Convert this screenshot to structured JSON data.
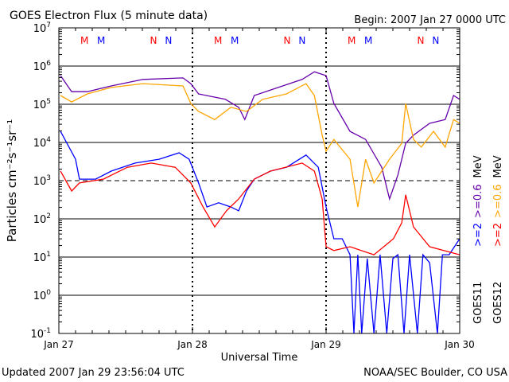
{
  "chart_data": {
    "type": "line",
    "title": "GOES Electron Flux (5 minute data)",
    "begin_label": "Begin: 2007 Jan 27 0000 UTC",
    "xlabel": "Universal Time",
    "ylabel": "Particles cm⁻²s⁻¹sr⁻¹",
    "x_unit": "hours since 2007 Jan 27 0000 UTC",
    "xlim": [
      0,
      72
    ],
    "y_scale": "log10",
    "ylim_log10": [
      -1,
      7
    ],
    "x_ticks": [
      {
        "hours": 0,
        "label": "Jan 27"
      },
      {
        "hours": 24,
        "label": "Jan 28"
      },
      {
        "hours": 48,
        "label": "Jan 29"
      },
      {
        "hours": 72,
        "label": "Jan 30"
      }
    ],
    "y_ticks": [
      {
        "base": "10",
        "exp": "7"
      },
      {
        "base": "10",
        "exp": "6"
      },
      {
        "base": "10",
        "exp": "5"
      },
      {
        "base": "10",
        "exp": "4"
      },
      {
        "base": "10",
        "exp": "3"
      },
      {
        "base": "10",
        "exp": "2"
      },
      {
        "base": "10",
        "exp": "1"
      },
      {
        "base": "10",
        "exp": "0"
      },
      {
        "base": "10",
        "exp": "-1"
      }
    ],
    "threshold_log10": 3,
    "grid": true,
    "legend": {
      "placement": "right",
      "satellites": [
        "GOES11",
        "GOES12"
      ],
      "unit": "MeV",
      "entries": [
        {
          "sat": "GOES11",
          "label": ">=2",
          "color": "#0000ff"
        },
        {
          "sat": "GOES11",
          "label": ">=0.6",
          "color": "#6600aa"
        },
        {
          "sat": "GOES12",
          "label": ">=2",
          "color": "#ff0000"
        },
        {
          "sat": "GOES12",
          "label": ">=0.6",
          "color": "#ffa500"
        }
      ]
    },
    "markers": [
      {
        "label": "M",
        "color": "#ff0000",
        "hour_of_day": 4.6
      },
      {
        "label": "M",
        "color": "#0000ff",
        "hour_of_day": 7.6
      },
      {
        "label": "N",
        "color": "#ff0000",
        "hour_of_day": 17.0
      },
      {
        "label": "N",
        "color": "#0000ff",
        "hour_of_day": 19.7
      }
    ],
    "series": [
      {
        "name": "GOES11 >=0.6 MeV",
        "color": "#6600aa",
        "points": [
          [
            0.3,
            5.75
          ],
          [
            2.3,
            5.33
          ],
          [
            5.1,
            5.33
          ],
          [
            9.4,
            5.48
          ],
          [
            15.1,
            5.65
          ],
          [
            22.3,
            5.69
          ],
          [
            23.7,
            5.54
          ],
          [
            25.1,
            5.27
          ],
          [
            29.9,
            5.13
          ],
          [
            32.3,
            4.92
          ],
          [
            33.4,
            4.6
          ],
          [
            35.1,
            5.23
          ],
          [
            39.4,
            5.44
          ],
          [
            43.7,
            5.65
          ],
          [
            45.9,
            5.85
          ],
          [
            48,
            5.75
          ],
          [
            49.4,
            5.02
          ],
          [
            52.3,
            4.29
          ],
          [
            55.1,
            4.08
          ],
          [
            58,
            3.35
          ],
          [
            59.4,
            2.52
          ],
          [
            60.9,
            3.15
          ],
          [
            62.3,
            3.98
          ],
          [
            63.7,
            4.19
          ],
          [
            66.6,
            4.5
          ],
          [
            69.4,
            4.6
          ],
          [
            70.9,
            5.23
          ],
          [
            72,
            5.13
          ]
        ]
      },
      {
        "name": "GOES12 >=0.6 MeV",
        "color": "#ffa500",
        "points": [
          [
            0.3,
            5.23
          ],
          [
            2.3,
            5.06
          ],
          [
            5.1,
            5.27
          ],
          [
            9.4,
            5.44
          ],
          [
            15.1,
            5.54
          ],
          [
            22.3,
            5.48
          ],
          [
            23.7,
            5.02
          ],
          [
            25.1,
            4.81
          ],
          [
            28,
            4.6
          ],
          [
            30.9,
            4.92
          ],
          [
            33.7,
            4.81
          ],
          [
            36.6,
            5.13
          ],
          [
            40.9,
            5.27
          ],
          [
            44.4,
            5.54
          ],
          [
            45.9,
            5.23
          ],
          [
            47.3,
            4.19
          ],
          [
            48,
            3.77
          ],
          [
            49.4,
            4.08
          ],
          [
            52.3,
            3.56
          ],
          [
            53.7,
            2.31
          ],
          [
            55.1,
            3.56
          ],
          [
            56.6,
            2.94
          ],
          [
            59.4,
            3.56
          ],
          [
            61.6,
            3.98
          ],
          [
            62.3,
            5.02
          ],
          [
            63.7,
            4.08
          ],
          [
            65.1,
            3.88
          ],
          [
            67.3,
            4.29
          ],
          [
            69.4,
            3.88
          ],
          [
            70.9,
            4.6
          ],
          [
            72,
            4.5
          ]
        ]
      },
      {
        "name": "GOES11 >=2 MeV",
        "color": "#0000ff",
        "points": [
          [
            0.3,
            4.29
          ],
          [
            3,
            3.56
          ],
          [
            3.7,
            3.04
          ],
          [
            6.6,
            3.04
          ],
          [
            9.4,
            3.25
          ],
          [
            13.7,
            3.46
          ],
          [
            18,
            3.56
          ],
          [
            21.6,
            3.73
          ],
          [
            23.4,
            3.56
          ],
          [
            25.1,
            2.94
          ],
          [
            26.6,
            2.31
          ],
          [
            28.7,
            2.42
          ],
          [
            30.9,
            2.31
          ],
          [
            32.3,
            2.21
          ],
          [
            33.7,
            2.73
          ],
          [
            35.1,
            3.04
          ],
          [
            38,
            3.25
          ],
          [
            40.9,
            3.35
          ],
          [
            44.4,
            3.67
          ],
          [
            46.6,
            3.35
          ],
          [
            48,
            2.31
          ],
          [
            49.4,
            1.48
          ],
          [
            50.9,
            1.48
          ],
          [
            52.3,
            1.06
          ],
          [
            53,
            -1
          ],
          [
            53.7,
            1.06
          ],
          [
            54.4,
            -1
          ],
          [
            55.4,
            0.96
          ],
          [
            56.6,
            -1
          ],
          [
            57.7,
            1.06
          ],
          [
            58.9,
            -1
          ],
          [
            60,
            0.96
          ],
          [
            60.9,
            1.06
          ],
          [
            62,
            -1
          ],
          [
            63,
            1.06
          ],
          [
            64.4,
            -1
          ],
          [
            65.4,
            1.06
          ],
          [
            66.6,
            0.85
          ],
          [
            68,
            -1
          ],
          [
            68.9,
            1.06
          ],
          [
            70.1,
            1.06
          ],
          [
            72,
            1.48
          ]
        ]
      },
      {
        "name": "GOES12 >=2 MeV",
        "color": "#ff0000",
        "points": [
          [
            0.3,
            3.25
          ],
          [
            2.3,
            2.73
          ],
          [
            3.7,
            2.94
          ],
          [
            8,
            3.04
          ],
          [
            12.3,
            3.35
          ],
          [
            16.6,
            3.46
          ],
          [
            20.9,
            3.35
          ],
          [
            23.7,
            2.94
          ],
          [
            25.9,
            2.31
          ],
          [
            28,
            1.79
          ],
          [
            30.1,
            2.21
          ],
          [
            32.3,
            2.52
          ],
          [
            35.1,
            3.04
          ],
          [
            38,
            3.25
          ],
          [
            43.7,
            3.46
          ],
          [
            45.9,
            3.25
          ],
          [
            47.3,
            2.52
          ],
          [
            48,
            1.27
          ],
          [
            49.4,
            1.17
          ],
          [
            52.3,
            1.27
          ],
          [
            56.6,
            1.06
          ],
          [
            60.1,
            1.48
          ],
          [
            61.6,
            1.9
          ],
          [
            62.3,
            2.63
          ],
          [
            63.7,
            1.79
          ],
          [
            66.6,
            1.27
          ],
          [
            72,
            1.06
          ]
        ]
      }
    ]
  },
  "footer": {
    "updated": "Updated 2007 Jan 29 23:56:04 UTC",
    "credit": "NOAA/SEC Boulder, CO USA"
  }
}
